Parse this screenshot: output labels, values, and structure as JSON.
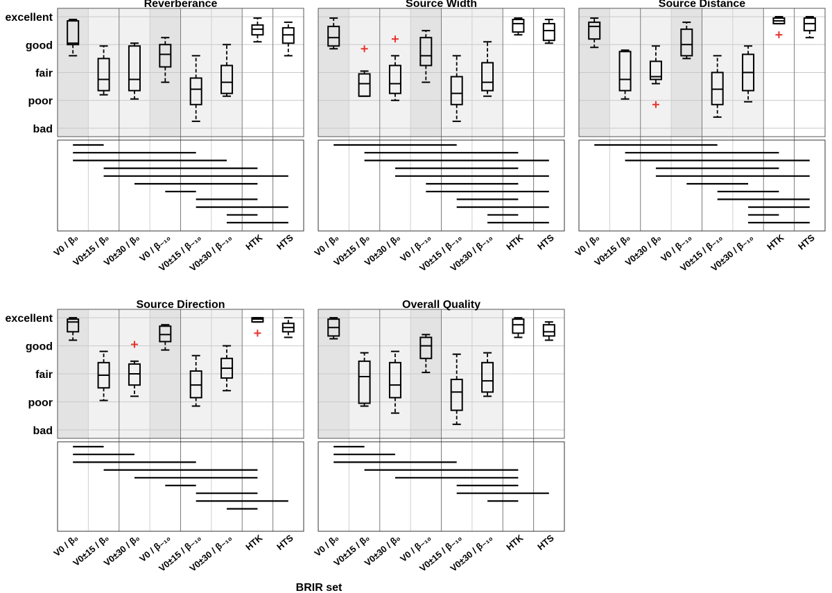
{
  "xlabel": "BRIR set",
  "ytick_labels": [
    "bad",
    "poor",
    "fair",
    "good",
    "excellent"
  ],
  "xtick_labels": [
    "V0 / β₀",
    "V0±15 / β₀",
    "V0±30 / β₀",
    "V0 / β₋₁₀",
    "V0±15 / β₋₁₀",
    "V0±30 / β₋₁₀",
    "HTK",
    "HTS"
  ],
  "colors": {
    "box": "#000000",
    "outlier": "#e8302a",
    "shade_dark": "#e3e3e3",
    "shade_light": "#f2f1f2",
    "grid": "#c8c8c8"
  },
  "chart_data": [
    {
      "type": "box",
      "title": "Reverberance",
      "ylim": [
        0.7,
        5.3
      ],
      "boxes": [
        {
          "whislo": 3.6,
          "q1": 4.0,
          "med": 4.05,
          "q3": 4.85,
          "whishi": 4.9,
          "fliers": []
        },
        {
          "whislo": 2.2,
          "q1": 2.35,
          "med": 2.75,
          "q3": 3.5,
          "whishi": 3.95,
          "fliers": []
        },
        {
          "whislo": 2.05,
          "q1": 2.35,
          "med": 2.75,
          "q3": 3.95,
          "whishi": 4.05,
          "fliers": []
        },
        {
          "whislo": 2.65,
          "q1": 3.2,
          "med": 3.65,
          "q3": 4.0,
          "whishi": 4.25,
          "fliers": []
        },
        {
          "whislo": 1.25,
          "q1": 1.85,
          "med": 2.4,
          "q3": 2.8,
          "whishi": 3.6,
          "fliers": []
        },
        {
          "whislo": 2.15,
          "q1": 2.25,
          "med": 2.65,
          "q3": 3.25,
          "whishi": 4.0,
          "fliers": []
        },
        {
          "whislo": 4.1,
          "q1": 4.35,
          "med": 4.55,
          "q3": 4.7,
          "whishi": 4.95,
          "fliers": []
        },
        {
          "whislo": 3.6,
          "q1": 4.05,
          "med": 4.35,
          "q3": 4.6,
          "whishi": 4.8,
          "fliers": []
        }
      ],
      "significant_pairs": [
        [
          1,
          2
        ],
        [
          1,
          5
        ],
        [
          1,
          6
        ],
        [
          2,
          7
        ],
        [
          2,
          8
        ],
        [
          3,
          7
        ],
        [
          4,
          5
        ],
        [
          5,
          7
        ],
        [
          5,
          8
        ],
        [
          6,
          7
        ],
        [
          6,
          8
        ]
      ]
    },
    {
      "type": "box",
      "title": "Source Width",
      "ylim": [
        0.7,
        5.3
      ],
      "boxes": [
        {
          "whislo": 3.85,
          "q1": 3.95,
          "med": 4.25,
          "q3": 4.65,
          "whishi": 4.95,
          "fliers": []
        },
        {
          "whislo": 2.15,
          "q1": 2.15,
          "med": 2.6,
          "q3": 2.95,
          "whishi": 3.05,
          "fliers": [
            3.85
          ]
        },
        {
          "whislo": 2.0,
          "q1": 2.25,
          "med": 2.6,
          "q3": 3.25,
          "whishi": 3.6,
          "fliers": [
            4.2
          ]
        },
        {
          "whislo": 2.65,
          "q1": 3.25,
          "med": 3.6,
          "q3": 4.25,
          "whishi": 4.5,
          "fliers": []
        },
        {
          "whislo": 1.25,
          "q1": 1.85,
          "med": 2.25,
          "q3": 2.85,
          "whishi": 3.6,
          "fliers": []
        },
        {
          "whislo": 2.15,
          "q1": 2.35,
          "med": 2.65,
          "q3": 3.35,
          "whishi": 4.1,
          "fliers": []
        },
        {
          "whislo": 4.35,
          "q1": 4.45,
          "med": 4.75,
          "q3": 4.9,
          "whishi": 4.95,
          "fliers": []
        },
        {
          "whislo": 4.05,
          "q1": 4.15,
          "med": 4.5,
          "q3": 4.75,
          "whishi": 4.9,
          "fliers": []
        }
      ],
      "significant_pairs": [
        [
          1,
          5
        ],
        [
          2,
          7
        ],
        [
          2,
          8
        ],
        [
          3,
          7
        ],
        [
          3,
          8
        ],
        [
          4,
          7
        ],
        [
          4,
          8
        ],
        [
          5,
          7
        ],
        [
          5,
          8
        ],
        [
          6,
          7
        ],
        [
          6,
          8
        ]
      ]
    },
    {
      "type": "box",
      "title": "Source Distance",
      "ylim": [
        0.7,
        5.3
      ],
      "boxes": [
        {
          "whislo": 3.9,
          "q1": 4.2,
          "med": 4.65,
          "q3": 4.8,
          "whishi": 4.95,
          "fliers": []
        },
        {
          "whislo": 2.05,
          "q1": 2.35,
          "med": 2.75,
          "q3": 3.75,
          "whishi": 3.8,
          "fliers": []
        },
        {
          "whislo": 2.6,
          "q1": 2.75,
          "med": 2.85,
          "q3": 3.4,
          "whishi": 3.95,
          "fliers": [
            1.85
          ]
        },
        {
          "whislo": 3.5,
          "q1": 3.6,
          "med": 4.0,
          "q3": 4.55,
          "whishi": 4.8,
          "fliers": []
        },
        {
          "whislo": 1.4,
          "q1": 1.85,
          "med": 2.4,
          "q3": 3.0,
          "whishi": 3.6,
          "fliers": []
        },
        {
          "whislo": 1.95,
          "q1": 2.35,
          "med": 3.0,
          "q3": 3.65,
          "whishi": 3.95,
          "fliers": []
        },
        {
          "whislo": 4.75,
          "q1": 4.75,
          "med": 4.85,
          "q3": 4.95,
          "whishi": 5.0,
          "fliers": [
            4.35
          ]
        },
        {
          "whislo": 4.25,
          "q1": 4.5,
          "med": 4.75,
          "q3": 4.95,
          "whishi": 5.0,
          "fliers": []
        }
      ],
      "significant_pairs": [
        [
          1,
          5
        ],
        [
          2,
          7
        ],
        [
          2,
          8
        ],
        [
          3,
          7
        ],
        [
          3,
          8
        ],
        [
          4,
          6
        ],
        [
          5,
          7
        ],
        [
          5,
          8
        ],
        [
          6,
          8
        ],
        [
          6,
          7
        ],
        [
          6,
          8
        ]
      ]
    },
    {
      "type": "box",
      "title": "Source Direction",
      "ylim": [
        0.7,
        5.3
      ],
      "boxes": [
        {
          "whislo": 4.2,
          "q1": 4.5,
          "med": 4.85,
          "q3": 4.95,
          "whishi": 5.0,
          "fliers": []
        },
        {
          "whislo": 2.05,
          "q1": 2.5,
          "med": 2.95,
          "q3": 3.4,
          "whishi": 3.8,
          "fliers": []
        },
        {
          "whislo": 2.2,
          "q1": 2.6,
          "med": 3.0,
          "q3": 3.35,
          "whishi": 3.45,
          "fliers": [
            4.05
          ]
        },
        {
          "whislo": 3.85,
          "q1": 4.15,
          "med": 4.4,
          "q3": 4.7,
          "whishi": 4.75,
          "fliers": []
        },
        {
          "whislo": 1.85,
          "q1": 2.15,
          "med": 2.6,
          "q3": 3.1,
          "whishi": 3.65,
          "fliers": []
        },
        {
          "whislo": 2.4,
          "q1": 2.85,
          "med": 3.2,
          "q3": 3.55,
          "whishi": 4.0,
          "fliers": []
        },
        {
          "whislo": 4.85,
          "q1": 4.85,
          "med": 4.95,
          "q3": 5.0,
          "whishi": 5.0,
          "fliers": [
            4.45
          ]
        },
        {
          "whislo": 4.3,
          "q1": 4.5,
          "med": 4.65,
          "q3": 4.8,
          "whishi": 5.0,
          "fliers": []
        }
      ],
      "significant_pairs": [
        [
          1,
          2
        ],
        [
          1,
          3
        ],
        [
          1,
          5
        ],
        [
          2,
          7
        ],
        [
          3,
          7
        ],
        [
          4,
          5
        ],
        [
          5,
          7
        ],
        [
          5,
          8
        ],
        [
          6,
          7
        ]
      ]
    },
    {
      "type": "box",
      "title": "Overall Quality",
      "ylim": [
        0.7,
        5.3
      ],
      "boxes": [
        {
          "whislo": 4.25,
          "q1": 4.35,
          "med": 4.65,
          "q3": 4.95,
          "whishi": 5.0,
          "fliers": []
        },
        {
          "whislo": 1.85,
          "q1": 1.95,
          "med": 2.9,
          "q3": 3.45,
          "whishi": 3.75,
          "fliers": []
        },
        {
          "whislo": 1.6,
          "q1": 2.15,
          "med": 2.6,
          "q3": 3.4,
          "whishi": 3.8,
          "fliers": []
        },
        {
          "whislo": 3.05,
          "q1": 3.55,
          "med": 4.0,
          "q3": 4.3,
          "whishi": 4.4,
          "fliers": []
        },
        {
          "whislo": 1.2,
          "q1": 1.7,
          "med": 2.35,
          "q3": 2.8,
          "whishi": 3.7,
          "fliers": []
        },
        {
          "whislo": 2.2,
          "q1": 2.35,
          "med": 2.75,
          "q3": 3.4,
          "whishi": 3.75,
          "fliers": []
        },
        {
          "whislo": 4.3,
          "q1": 4.45,
          "med": 4.75,
          "q3": 4.95,
          "whishi": 5.0,
          "fliers": []
        },
        {
          "whislo": 4.2,
          "q1": 4.35,
          "med": 4.5,
          "q3": 4.75,
          "whishi": 4.85,
          "fliers": []
        }
      ],
      "significant_pairs": [
        [
          1,
          2
        ],
        [
          1,
          3
        ],
        [
          1,
          5
        ],
        [
          2,
          7
        ],
        [
          3,
          7
        ],
        [
          5,
          7
        ],
        [
          5,
          8
        ],
        [
          6,
          7
        ]
      ]
    }
  ]
}
